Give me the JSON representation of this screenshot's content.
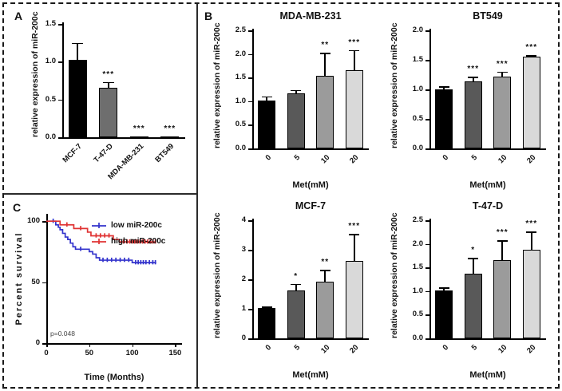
{
  "panels": {
    "a": {
      "label": "A"
    },
    "b": {
      "label": "B"
    },
    "c": {
      "label": "C"
    }
  },
  "chart_data": [
    {
      "id": "panelA",
      "type": "bar",
      "title": "",
      "ylabel": "relative expression of miR-200c",
      "xlabel": "",
      "categories": [
        "MCF-7",
        "T-47-D",
        "MDA-MB-231",
        "BT549"
      ],
      "values": [
        1.02,
        0.65,
        0.012,
        0.008
      ],
      "errors": [
        0.23,
        0.08,
        0,
        0
      ],
      "stars": [
        "",
        "***",
        "***",
        "***"
      ],
      "ylim": [
        0,
        1.5
      ],
      "yticks": [
        "0.0",
        "0.5",
        "1.0",
        "1.5"
      ],
      "bar_colors": [
        "#000000",
        "#6e6e6e",
        "#000000",
        "#000000"
      ]
    },
    {
      "id": "b_mda",
      "type": "bar",
      "title": "MDA-MB-231",
      "ylabel": "relative expression of miR-200c",
      "xlabel": "Met(mM)",
      "categories": [
        "0",
        "5",
        "10",
        "20"
      ],
      "values": [
        1.01,
        1.16,
        1.53,
        1.66
      ],
      "errors": [
        0.09,
        0.08,
        0.49,
        0.42
      ],
      "stars": [
        "",
        "",
        "**",
        "***"
      ],
      "ylim": [
        0,
        2.5
      ],
      "yticks": [
        "0.0",
        "0.5",
        "1.0",
        "1.5",
        "2.0",
        "2.5"
      ],
      "bar_colors": [
        "#000000",
        "#595959",
        "#9b9b9b",
        "#d9d9d9"
      ]
    },
    {
      "id": "b_bt549",
      "type": "bar",
      "title": "BT549",
      "ylabel": "relative expression of miR-200c",
      "xlabel": "Met(mM)",
      "categories": [
        "0",
        "5",
        "10",
        "20"
      ],
      "values": [
        1.0,
        1.14,
        1.21,
        1.56
      ],
      "errors": [
        0.05,
        0.07,
        0.09,
        0.02
      ],
      "stars": [
        "",
        "***",
        "***",
        "***"
      ],
      "ylim": [
        0,
        2.0
      ],
      "yticks": [
        "0.0",
        "0.5",
        "1.0",
        "1.5",
        "2.0"
      ],
      "bar_colors": [
        "#000000",
        "#595959",
        "#9b9b9b",
        "#d9d9d9"
      ]
    },
    {
      "id": "b_mcf7",
      "type": "bar",
      "title": "MCF-7",
      "ylabel": "relative expression of miR-200c",
      "xlabel": "Met(mM)",
      "categories": [
        "0",
        "5",
        "10",
        "20"
      ],
      "values": [
        1.02,
        1.62,
        1.92,
        2.62
      ],
      "errors": [
        0.05,
        0.23,
        0.4,
        0.91
      ],
      "stars": [
        "",
        "*",
        "**",
        "***"
      ],
      "ylim": [
        0,
        4
      ],
      "yticks": [
        "0",
        "1",
        "2",
        "3",
        "4"
      ],
      "bar_colors": [
        "#000000",
        "#595959",
        "#9b9b9b",
        "#d9d9d9"
      ]
    },
    {
      "id": "b_t47d",
      "type": "bar",
      "title": "T-47-D",
      "ylabel": "relative expression of miR-200c",
      "xlabel": "Met(mM)",
      "categories": [
        "0",
        "5",
        "10",
        "20"
      ],
      "values": [
        1.01,
        1.37,
        1.66,
        1.87
      ],
      "errors": [
        0.07,
        0.33,
        0.41,
        0.39
      ],
      "stars": [
        "",
        "*",
        "***",
        "***"
      ],
      "ylim": [
        0,
        2.5
      ],
      "yticks": [
        "0.0",
        "0.5",
        "1.0",
        "1.5",
        "2.0",
        "2.5"
      ],
      "bar_colors": [
        "#000000",
        "#595959",
        "#9b9b9b",
        "#d9d9d9"
      ]
    },
    {
      "id": "km",
      "type": "line",
      "subtype": "kaplan-meier",
      "title": "",
      "xlabel": "Time (Months)",
      "ylabel": "Percent survival",
      "annotation": "p=0.048",
      "xlim": [
        0,
        158
      ],
      "xticks": [
        "0",
        "50",
        "100",
        "150"
      ],
      "ylim": [
        0,
        106
      ],
      "yticks": [
        "0",
        "50",
        "100"
      ],
      "legend_position": "top-right",
      "series": [
        {
          "name": "low miR-200c",
          "color": "#3333cc",
          "start": [
            0,
            100
          ],
          "end_t": 128,
          "events": [
            [
              11,
              97
            ],
            [
              14,
              95
            ],
            [
              16,
              93
            ],
            [
              19,
              90
            ],
            [
              22,
              87
            ],
            [
              25,
              85
            ],
            [
              28,
              82
            ],
            [
              31,
              79
            ],
            [
              34,
              77
            ],
            [
              50,
              75
            ],
            [
              54,
              73
            ],
            [
              58,
              70
            ],
            [
              62,
              68
            ],
            [
              100,
              66
            ]
          ],
          "censors": [
            [
              8,
              100
            ],
            [
              40,
              77
            ],
            [
              66,
              68
            ],
            [
              71,
              68
            ],
            [
              76,
              68
            ],
            [
              81,
              68
            ],
            [
              86,
              68
            ],
            [
              91,
              68
            ],
            [
              96,
              68
            ],
            [
              104,
              66
            ],
            [
              107,
              66
            ],
            [
              110,
              66
            ],
            [
              113,
              66
            ],
            [
              116,
              66
            ],
            [
              120,
              66
            ],
            [
              124,
              66
            ],
            [
              127,
              66
            ]
          ]
        },
        {
          "name": "high miR-200c",
          "color": "#e03333",
          "start": [
            0,
            100
          ],
          "end_t": 128,
          "events": [
            [
              16,
              97
            ],
            [
              32,
              94
            ],
            [
              48,
              91
            ],
            [
              52,
              88
            ],
            [
              78,
              85
            ],
            [
              85,
              83
            ]
          ],
          "censors": [
            [
              24,
              97
            ],
            [
              40,
              94
            ],
            [
              58,
              88
            ],
            [
              63,
              88
            ],
            [
              68,
              88
            ],
            [
              73,
              88
            ],
            [
              90,
              83
            ],
            [
              94,
              83
            ],
            [
              97,
              83
            ],
            [
              100,
              83
            ],
            [
              103,
              83
            ],
            [
              106,
              83
            ],
            [
              109,
              83
            ],
            [
              112,
              83
            ],
            [
              115,
              83
            ],
            [
              118,
              83
            ],
            [
              121,
              83
            ],
            [
              124,
              83
            ],
            [
              127,
              83
            ]
          ]
        }
      ]
    }
  ]
}
